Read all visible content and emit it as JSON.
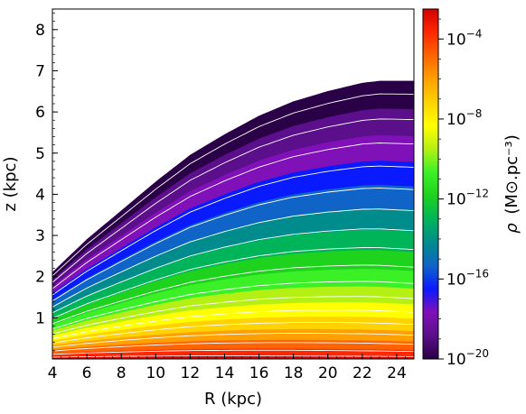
{
  "chart_data": {
    "type": "heatmap",
    "xlabel": "R (kpc)",
    "ylabel": "z (kpc)",
    "x_ticks": [
      "4",
      "6",
      "8",
      "10",
      "12",
      "14",
      "16",
      "18",
      "20",
      "22",
      "24"
    ],
    "y_ticks": [
      "1",
      "2",
      "3",
      "4",
      "5",
      "6",
      "7",
      "8"
    ],
    "xlim": [
      4,
      25
    ],
    "ylim": [
      0,
      8.5
    ],
    "colorbar": {
      "label_prefix": "ρ",
      "label_units": "(M⊙.pc⁻³)",
      "scale": "log",
      "range_log10": [
        -20,
        -2.5
      ],
      "ticks": [
        {
          "exp": -4,
          "mantissa": "10",
          "power": "−4"
        },
        {
          "exp": -8,
          "mantissa": "10",
          "power": "−8"
        },
        {
          "exp": -12,
          "mantissa": "10",
          "power": "−12"
        },
        {
          "exp": -16,
          "mantissa": "10",
          "power": "−16"
        },
        {
          "exp": -20,
          "mantissa": "10",
          "power": "−20"
        }
      ],
      "colors": [
        "#2a0046",
        "#5b0f8a",
        "#8010b8",
        "#0a1aff",
        "#1064c8",
        "#008c8c",
        "#00b45a",
        "#1ed21e",
        "#3cf028",
        "#b4f014",
        "#ffff00",
        "#ffd200",
        "#ffa000",
        "#ff6400",
        "#ff2800",
        "#d20000"
      ]
    },
    "density_upper_boundary": {
      "R": [
        4,
        6,
        8,
        10,
        12,
        14,
        16,
        18,
        20,
        22,
        23,
        25
      ],
      "z": [
        2.1,
        2.9,
        3.6,
        4.3,
        4.95,
        5.45,
        5.9,
        6.25,
        6.5,
        6.7,
        6.75,
        6.75
      ]
    },
    "contour_lines_log10_density": [
      -3,
      -4,
      -5,
      -6,
      -7,
      -8,
      -9,
      -10,
      -11,
      -12,
      -13,
      -14,
      -15,
      -16,
      -17,
      -18,
      -19
    ]
  }
}
